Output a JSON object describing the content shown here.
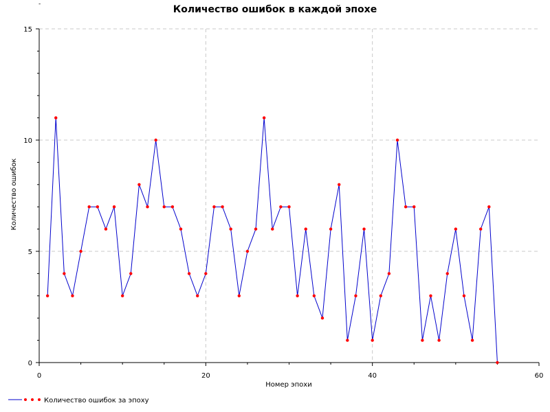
{
  "chart_data": {
    "type": "line",
    "title": "Количество ошибок в каждой эпохе",
    "xlabel": "Номер эпохи",
    "ylabel": "Количество ошибок",
    "xlim": [
      0,
      60
    ],
    "ylim": [
      0,
      15
    ],
    "x_ticks": [
      "0",
      "20",
      "40",
      "60"
    ],
    "y_ticks": [
      "0",
      "5",
      "10",
      "15"
    ],
    "grid": true,
    "legend_position": "bottom-left",
    "series": [
      {
        "name": "Количество ошибок за эпоху",
        "line_color": "#0000cc",
        "marker_color": "#ff0000",
        "x": [
          1,
          2,
          3,
          4,
          5,
          6,
          7,
          8,
          9,
          10,
          11,
          12,
          13,
          14,
          15,
          16,
          17,
          18,
          19,
          20,
          21,
          22,
          23,
          24,
          25,
          26,
          27,
          28,
          29,
          30,
          31,
          32,
          33,
          34,
          35,
          36,
          37,
          38,
          39,
          40,
          41,
          42,
          43,
          44,
          45,
          46,
          47,
          48,
          49,
          50,
          51,
          52,
          53,
          54,
          55
        ],
        "values": [
          3,
          11,
          4,
          3,
          5,
          7,
          7,
          6,
          7,
          3,
          4,
          8,
          7,
          10,
          7,
          7,
          6,
          4,
          3,
          4,
          7,
          7,
          6,
          3,
          5,
          6,
          11,
          6,
          7,
          7,
          3,
          6,
          3,
          2,
          6,
          8,
          1,
          3,
          6,
          1,
          3,
          4,
          10,
          7,
          7,
          1,
          3,
          1,
          4,
          6,
          3,
          1,
          6,
          7,
          0
        ]
      }
    ]
  },
  "header": {
    "tiny_mark": "-"
  }
}
